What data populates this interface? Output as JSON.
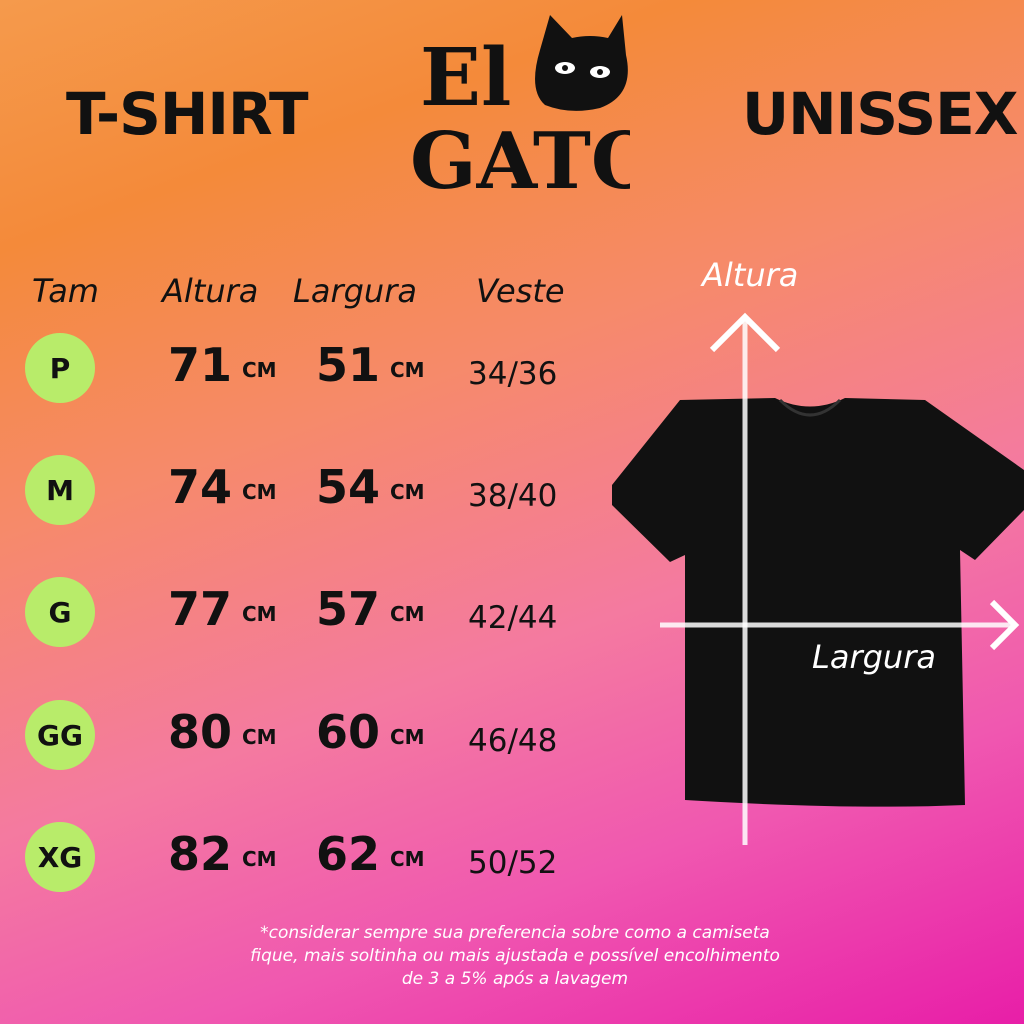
{
  "header": {
    "left_title": "T-SHIRT",
    "right_title": "UNISSEX",
    "logo_text": "El GATO"
  },
  "table": {
    "columns": [
      "Tam",
      "Altura",
      "Largura",
      "Veste"
    ],
    "unit": "CM",
    "rows": [
      {
        "size": "P",
        "altura": "71",
        "largura": "51",
        "veste": "34/36"
      },
      {
        "size": "M",
        "altura": "74",
        "largura": "54",
        "veste": "38/40"
      },
      {
        "size": "G",
        "altura": "77",
        "largura": "57",
        "veste": "42/44"
      },
      {
        "size": "GG",
        "altura": "80",
        "largura": "60",
        "veste": "46/48"
      },
      {
        "size": "XG",
        "altura": "82",
        "largura": "62",
        "veste": "50/52"
      }
    ]
  },
  "diagram": {
    "height_label": "Altura",
    "width_label": "Largura"
  },
  "footnote": [
    "*considerar  sempre sua preferencia  sobre como a camiseta",
    "fique, mais soltinha ou mais ajustada  e possível encolhimento",
    "de 3 a 5% após a lavagem"
  ],
  "colors": {
    "size_badge": "#b8ec6a",
    "top": "#f48a3a",
    "bottom": "#e81ea8"
  }
}
